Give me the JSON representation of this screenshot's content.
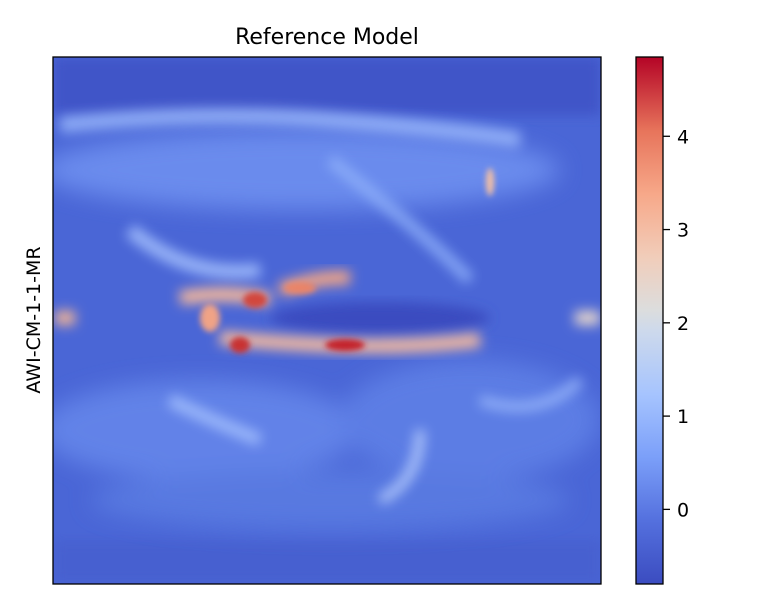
{
  "chart_data": {
    "type": "heatmap",
    "title": "Reference Model",
    "ylabel": "AWI-CM-1-1-MR",
    "xlabel": "",
    "x_ticks": [],
    "y_ticks": [],
    "colormap": "coolwarm",
    "colorbar": {
      "range": [
        -0.8,
        4.85
      ],
      "ticks": [
        0,
        1,
        2,
        3,
        4
      ],
      "tick_labels": [
        "0",
        "1",
        "2",
        "3",
        "4"
      ]
    },
    "colors": {
      "low": "#3b4cc0",
      "mid": "#dddddd",
      "high": "#b40426",
      "background_field": "#4a66d6"
    }
  }
}
